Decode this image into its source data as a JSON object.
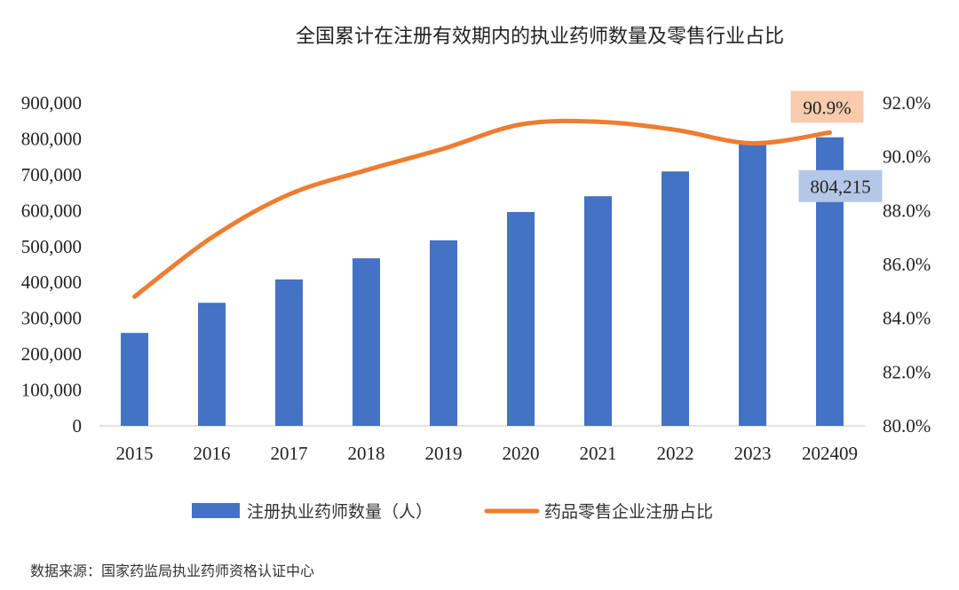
{
  "chart_data": {
    "type": "bar+line",
    "title": "全国累计在注册有效期内的执业药师数量及零售行业占比",
    "categories": [
      "2015",
      "2016",
      "2017",
      "2018",
      "2019",
      "2020",
      "2021",
      "2022",
      "2023",
      "202409"
    ],
    "series": [
      {
        "name": "注册执业药师数量（人）",
        "type": "bar",
        "axis": "left",
        "color": "#4472C4",
        "values": [
          259000,
          343000,
          408000,
          467000,
          517000,
          596000,
          640000,
          709000,
          790000,
          804215
        ]
      },
      {
        "name": "药品零售企业注册占比",
        "type": "line",
        "axis": "right",
        "color": "#ED7D31",
        "values": [
          84.8,
          87.0,
          88.6,
          89.5,
          90.3,
          91.2,
          91.3,
          91.0,
          90.5,
          90.9
        ]
      }
    ],
    "left_axis": {
      "ylim": [
        0,
        900000
      ],
      "ticks": [
        "0",
        "100,000",
        "200,000",
        "300,000",
        "400,000",
        "500,000",
        "600,000",
        "700,000",
        "800,000",
        "900,000"
      ]
    },
    "right_axis": {
      "ylim": [
        80.0,
        92.0
      ],
      "ticks": [
        "80.0%",
        "82.0%",
        "84.0%",
        "86.0%",
        "88.0%",
        "90.0%",
        "92.0%"
      ]
    },
    "annotations": [
      {
        "text": "90.9%",
        "series": "药品零售企业注册占比",
        "category": "202409",
        "bg": "#F8CBAD"
      },
      {
        "text": "804,215",
        "series": "注册执业药师数量（人）",
        "category": "202409",
        "bg": "#B4C7E7"
      }
    ],
    "legend": {
      "position": "bottom"
    },
    "grid": false
  },
  "source": "数据来源：国家药监局执业药师资格认证中心"
}
